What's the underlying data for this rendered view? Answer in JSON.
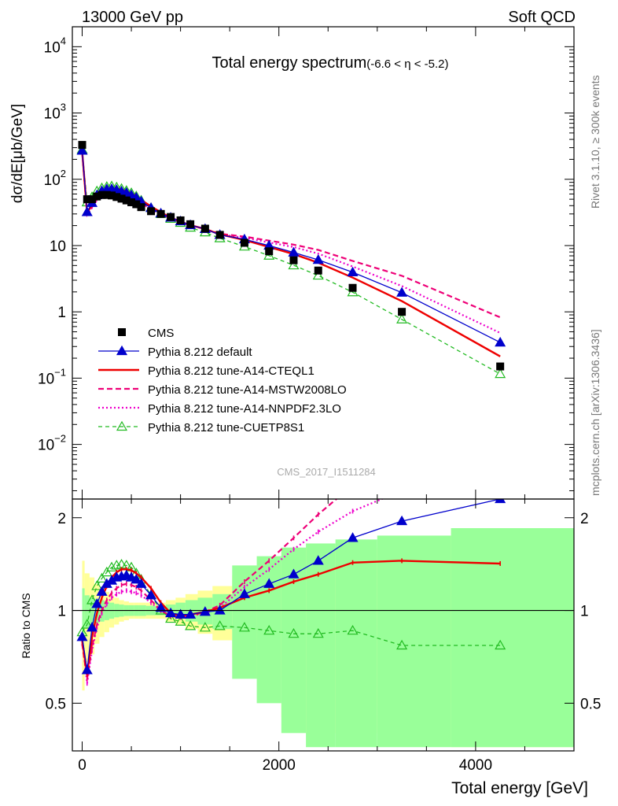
{
  "header": {
    "left": "13000 GeV pp",
    "right": "Soft QCD"
  },
  "side_labels": {
    "rivet": "Rivet 3.1.10, ≥ 300k events",
    "mcplots": "mcplots.cern.ch [arXiv:1306.3436]"
  },
  "watermark": "CMS_2017_I1511284",
  "main_plot": {
    "title": "Total energy spectrum",
    "title_cut": "(-6.6 < η < -5.2)",
    "ylabel": "dσ/dE[μb/GeV]",
    "y_ticks": [
      {
        "v": 10000,
        "base": "10",
        "exp": "4"
      },
      {
        "v": 1000,
        "base": "10",
        "exp": "3"
      },
      {
        "v": 100,
        "base": "10",
        "exp": "2"
      },
      {
        "v": 10,
        "base": "10",
        "exp": ""
      },
      {
        "v": 1,
        "base": "1",
        "exp": ""
      },
      {
        "v": 0.1,
        "base": "10",
        "exp": "−1"
      },
      {
        "v": 0.01,
        "base": "10",
        "exp": "−2"
      }
    ]
  },
  "ratio_plot": {
    "ylabel": "Ratio to CMS",
    "y_ticks": [
      {
        "v": 2,
        "label": "2"
      },
      {
        "v": 1,
        "label": "1"
      },
      {
        "v": 0.5,
        "label": "0.5"
      }
    ]
  },
  "x_axis": {
    "label": "Total energy [GeV]",
    "ticks": [
      {
        "v": 0,
        "label": "0"
      },
      {
        "v": 2000,
        "label": "2000"
      },
      {
        "v": 4000,
        "label": "4000"
      }
    ]
  },
  "legend": [
    {
      "key": "cms",
      "label": "CMS"
    },
    {
      "key": "default",
      "label": "Pythia 8.212 default"
    },
    {
      "key": "cteql1",
      "label": "Pythia 8.212 tune-A14-CTEQL1"
    },
    {
      "key": "mstw",
      "label": "Pythia 8.212 tune-A14-MSTW2008LO"
    },
    {
      "key": "nnpdf",
      "label": "Pythia 8.212 tune-A14-NNPDF2.3LO"
    },
    {
      "key": "cuetp",
      "label": "Pythia 8.212 tune-CUETP8S1"
    }
  ],
  "colors": {
    "cms": "#000000",
    "default": "#0000cc",
    "cteql1": "#ee0000",
    "mstw": "#ee0077",
    "nnpdf": "#ee00cc",
    "cuetp": "#22bb22",
    "band_inner": "#99ff99",
    "band_outer": "#ffff99"
  },
  "chart_data": {
    "type": "line",
    "xlim": [
      -100,
      5000
    ],
    "ylim_main": [
      0.0015,
      20000
    ],
    "y_scale_main": "log",
    "ylim_ratio": [
      0.35,
      2.3
    ],
    "x": [
      0,
      50,
      100,
      150,
      200,
      250,
      300,
      350,
      400,
      450,
      500,
      550,
      600,
      700,
      800,
      900,
      1000,
      1100,
      1250,
      1400,
      1650,
      1900,
      2150,
      2400,
      2750,
      3250,
      4250
    ],
    "series": [
      {
        "name": "CMS",
        "key": "cms",
        "values": [
          330,
          50,
          50,
          55,
          58,
          58,
          57,
          54,
          51,
          48,
          45,
          42,
          38,
          33,
          30,
          27,
          24,
          21,
          18,
          14.5,
          11,
          8.2,
          6.0,
          4.2,
          2.3,
          1.0,
          0.15
        ]
      },
      {
        "name": "Pythia 8.212 default",
        "key": "default",
        "ratio": [
          0.82,
          0.64,
          0.88,
          1.05,
          1.15,
          1.22,
          1.25,
          1.28,
          1.29,
          1.3,
          1.28,
          1.26,
          1.22,
          1.12,
          1.02,
          0.98,
          0.97,
          0.97,
          0.99,
          1.0,
          1.13,
          1.22,
          1.31,
          1.45,
          1.72,
          1.95,
          2.3
        ]
      },
      {
        "name": "Pythia 8.212 tune-A14-CTEQL1",
        "key": "cteql1",
        "ratio": [
          0.8,
          0.62,
          0.82,
          0.98,
          1.1,
          1.2,
          1.28,
          1.33,
          1.36,
          1.36,
          1.35,
          1.32,
          1.28,
          1.18,
          1.06,
          0.98,
          0.96,
          0.97,
          0.99,
          1.02,
          1.1,
          1.16,
          1.24,
          1.31,
          1.43,
          1.45,
          1.42
        ]
      },
      {
        "name": "Pythia 8.212 tune-A14-MSTW2008LO",
        "key": "mstw",
        "ratio": [
          0.78,
          0.6,
          0.76,
          0.9,
          1.0,
          1.08,
          1.14,
          1.18,
          1.21,
          1.22,
          1.21,
          1.19,
          1.16,
          1.08,
          1.0,
          0.96,
          0.95,
          0.96,
          0.99,
          1.04,
          1.24,
          1.45,
          1.72,
          2.05,
          2.55,
          3.5,
          5.5
        ]
      },
      {
        "name": "Pythia 8.212 tune-A14-NNPDF2.3LO",
        "key": "nnpdf",
        "ratio": [
          0.8,
          0.58,
          0.74,
          0.88,
          0.98,
          1.05,
          1.1,
          1.13,
          1.15,
          1.16,
          1.15,
          1.14,
          1.12,
          1.06,
          1.0,
          0.96,
          0.95,
          0.96,
          0.98,
          1.02,
          1.19,
          1.36,
          1.58,
          1.8,
          2.1,
          2.45,
          3.2
        ]
      },
      {
        "name": "Pythia 8.212 tune-CUETP8S1",
        "key": "cuetp",
        "ratio": [
          0.85,
          0.9,
          1.08,
          1.2,
          1.27,
          1.33,
          1.38,
          1.4,
          1.41,
          1.4,
          1.38,
          1.32,
          1.26,
          1.12,
          1.0,
          0.94,
          0.92,
          0.89,
          0.88,
          0.89,
          0.88,
          0.86,
          0.84,
          0.84,
          0.86,
          0.77,
          0.77
        ]
      }
    ]
  }
}
